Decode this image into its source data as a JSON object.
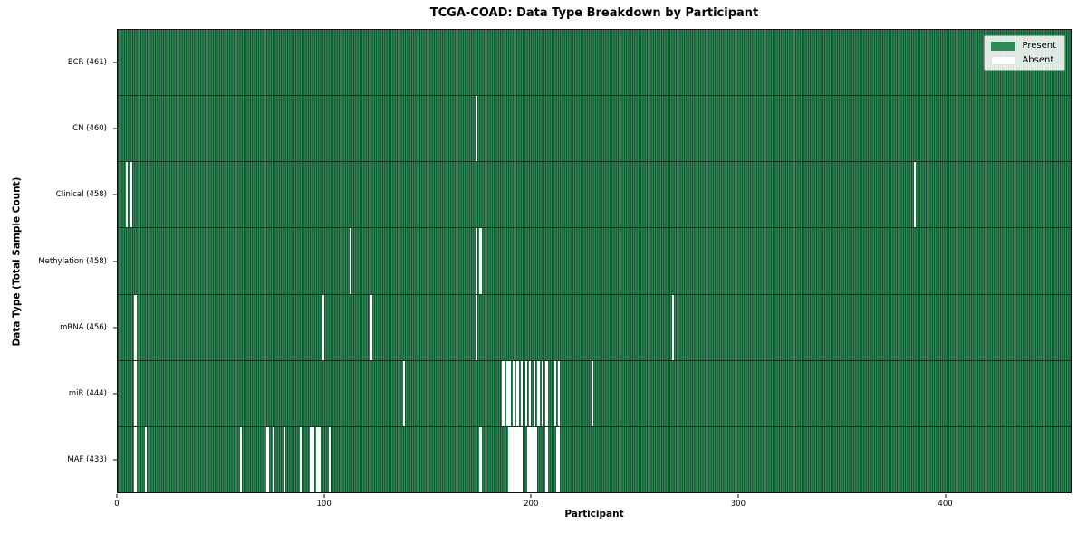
{
  "title": "TCGA-COAD: Data Type Breakdown by Participant",
  "xlabel": "Participant",
  "ylabel": "Data Type (Total Sample Count)",
  "legend": [
    {
      "label": "Present",
      "color": "#2e8b57"
    },
    {
      "label": "Absent",
      "color": "#ffffff"
    }
  ],
  "colors": {
    "present": "#2e8b57",
    "present_edge": "#15482c",
    "absent": "#ffffff"
  },
  "chart_data": {
    "type": "heatmap",
    "title": "TCGA-COAD: Data Type Breakdown by Participant",
    "xlabel": "Participant",
    "ylabel": "Data Type (Total Sample Count)",
    "legend_position": "upper right",
    "n_participants": 461,
    "x_range": [
      0,
      461
    ],
    "x_ticks": [
      0,
      100,
      200,
      300,
      400
    ],
    "rows": [
      {
        "label": "BCR (461)",
        "data_type": "BCR",
        "present_count": 461,
        "absent_participants": []
      },
      {
        "label": "CN (460)",
        "data_type": "CN",
        "present_count": 460,
        "absent_participants": [
          173
        ]
      },
      {
        "label": "Clinical (458)",
        "data_type": "Clinical",
        "present_count": 458,
        "absent_participants": [
          4,
          6,
          385
        ]
      },
      {
        "label": "Methylation (458)",
        "data_type": "Methylation",
        "present_count": 458,
        "absent_participants": [
          112,
          173,
          175
        ]
      },
      {
        "label": "mRNA (456)",
        "data_type": "mRNA",
        "present_count": 456,
        "absent_participants": [
          8,
          99,
          122,
          173,
          268
        ]
      },
      {
        "label": "miR (444)",
        "data_type": "miR",
        "present_count": 444,
        "absent_participants": [
          8,
          138,
          186,
          188,
          189,
          191,
          193,
          195,
          197,
          199,
          201,
          203,
          205,
          207,
          211,
          213,
          229
        ]
      },
      {
        "label": "MAF (433)",
        "data_type": "MAF",
        "present_count": 433,
        "absent_participants": [
          8,
          13,
          59,
          72,
          75,
          80,
          88,
          93,
          94,
          96,
          97,
          102,
          175,
          189,
          190,
          191,
          192,
          193,
          194,
          195,
          198,
          199,
          200,
          201,
          202,
          207,
          212,
          213
        ]
      }
    ]
  }
}
